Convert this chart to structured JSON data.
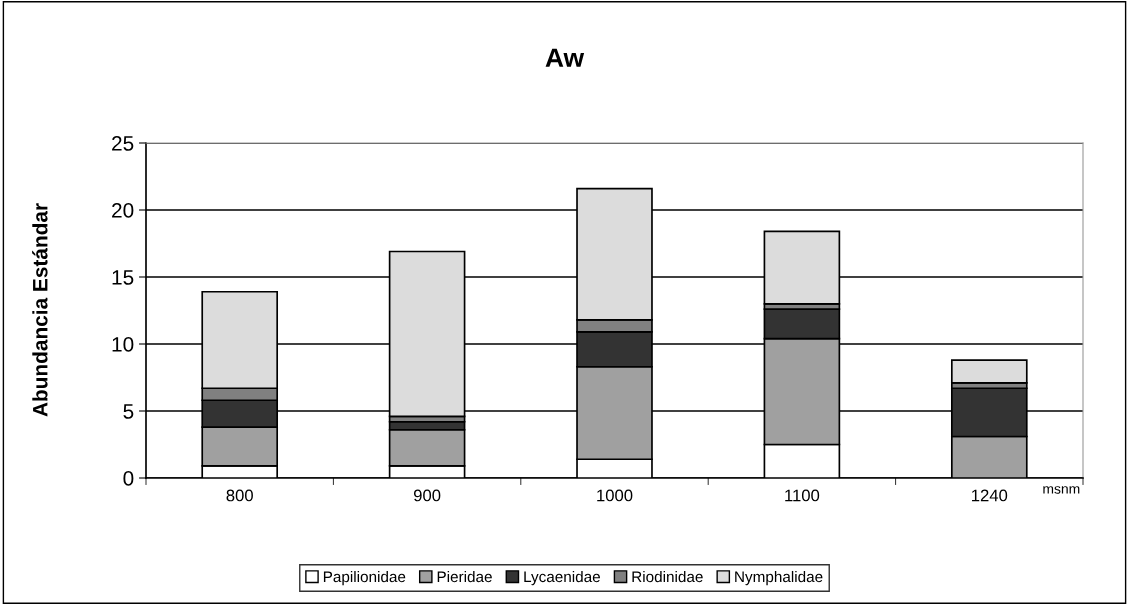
{
  "chart_data": {
    "type": "bar",
    "stacked": true,
    "title": "Aw",
    "ylabel": "Abundancia Estándar",
    "xlabel": "msnm",
    "categories": [
      "800",
      "900",
      "1000",
      "1100",
      "1240"
    ],
    "series": [
      {
        "name": "Papilionidae",
        "color": "#ffffff",
        "values": [
          0.9,
          0.9,
          1.4,
          2.5,
          0
        ]
      },
      {
        "name": "Pieridae",
        "color": "#a0a0a0",
        "values": [
          2.9,
          2.7,
          6.9,
          7.9,
          3.1
        ]
      },
      {
        "name": "Lycaenidae",
        "color": "#333333",
        "values": [
          2.0,
          0.6,
          2.6,
          2.2,
          3.6
        ]
      },
      {
        "name": "Riodinidae",
        "color": "#808080",
        "values": [
          0.9,
          0.4,
          0.9,
          0.4,
          0.4
        ]
      },
      {
        "name": "Nymphalidae",
        "color": "#dcdcdc",
        "values": [
          7.2,
          12.3,
          9.8,
          5.4,
          1.7
        ]
      }
    ],
    "ylim": [
      0,
      25
    ],
    "yticks": [
      0,
      5,
      10,
      15,
      20,
      25
    ],
    "grid": "y",
    "legend": "bottom"
  }
}
